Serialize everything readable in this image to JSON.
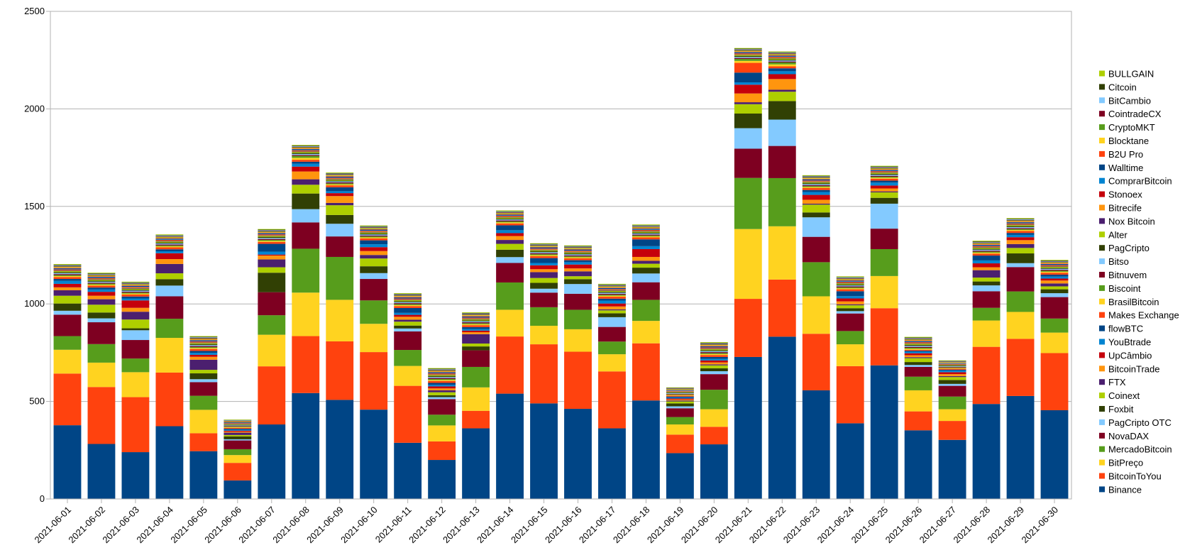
{
  "chart_data": {
    "type": "bar",
    "stacked": true,
    "title": "",
    "xlabel": "",
    "ylabel": "",
    "ylim": [
      0,
      2500
    ],
    "yticks": [
      0,
      500,
      1000,
      1500,
      2000,
      2500
    ],
    "grid": true,
    "legend": "right",
    "categories": [
      "2021-06-01",
      "2021-06-02",
      "2021-06-03",
      "2021-06-04",
      "2021-06-05",
      "2021-06-06",
      "2021-06-07",
      "2021-06-08",
      "2021-06-09",
      "2021-06-10",
      "2021-06-11",
      "2021-06-12",
      "2021-06-13",
      "2021-06-14",
      "2021-06-15",
      "2021-06-16",
      "2021-06-17",
      "2021-06-18",
      "2021-06-19",
      "2021-06-20",
      "2021-06-21",
      "2021-06-22",
      "2021-06-23",
      "2021-06-24",
      "2021-06-25",
      "2021-06-26",
      "2021-06-27",
      "2021-06-28",
      "2021-06-29",
      "2021-06-30"
    ],
    "series": [
      {
        "name": "Binance",
        "color": "#004586",
        "values": [
          378,
          282,
          240,
          373,
          245,
          95,
          382,
          543,
          508,
          458,
          288,
          200,
          362,
          540,
          490,
          462,
          362,
          505,
          235,
          280,
          728,
          832,
          557,
          388,
          685,
          352,
          303,
          487,
          528,
          455
        ]
      },
      {
        "name": "BitcoinToYou",
        "color": "#ff420e",
        "values": [
          265,
          292,
          282,
          275,
          92,
          90,
          298,
          292,
          300,
          295,
          292,
          95,
          90,
          293,
          303,
          293,
          292,
          293,
          95,
          90,
          298,
          293,
          290,
          293,
          293,
          97,
          97,
          293,
          293,
          293
        ]
      },
      {
        "name": "BitPreço",
        "color": "#ffd320",
        "values": [
          122,
          125,
          128,
          178,
          120,
          40,
          162,
          223,
          213,
          145,
          102,
          82,
          120,
          137,
          95,
          115,
          88,
          115,
          52,
          90,
          358,
          273,
          192,
          112,
          165,
          108,
          60,
          135,
          138,
          105
        ]
      },
      {
        "name": "MercadoBitcoin",
        "color": "#579d1c",
        "values": [
          70,
          95,
          70,
          98,
          72,
          30,
          100,
          225,
          220,
          120,
          82,
          55,
          105,
          140,
          95,
          100,
          65,
          108,
          38,
          100,
          262,
          247,
          175,
          68,
          138,
          70,
          65,
          65,
          105,
          72
        ]
      },
      {
        "name": "NovaDAX",
        "color": "#7e0021",
        "values": [
          110,
          112,
          95,
          115,
          70,
          45,
          118,
          135,
          105,
          110,
          95,
          80,
          85,
          100,
          75,
          82,
          75,
          90,
          45,
          80,
          150,
          165,
          130,
          90,
          105,
          50,
          55,
          85,
          125,
          110
        ]
      },
      {
        "name": "PagCripto OTC",
        "color": "#83caff",
        "values": [
          20,
          20,
          50,
          55,
          15,
          6,
          0,
          68,
          65,
          30,
          15,
          10,
          0,
          30,
          20,
          50,
          50,
          45,
          10,
          15,
          105,
          135,
          100,
          12,
          128,
          10,
          10,
          30,
          20,
          20
        ]
      },
      {
        "name": "Foxbit",
        "color": "#314004",
        "values": [
          37,
          30,
          10,
          33,
          30,
          15,
          100,
          80,
          45,
          35,
          15,
          10,
          20,
          38,
          30,
          25,
          20,
          30,
          15,
          15,
          75,
          95,
          25,
          15,
          30,
          15,
          20,
          20,
          50,
          20
        ]
      },
      {
        "name": "Coinext",
        "color": "#aecf00",
        "values": [
          40,
          40,
          45,
          30,
          18,
          7,
          28,
          45,
          50,
          40,
          20,
          15,
          15,
          30,
          25,
          15,
          15,
          20,
          10,
          15,
          48,
          48,
          40,
          15,
          28,
          20,
          15,
          20,
          28,
          15
        ]
      },
      {
        "name": "FTX",
        "color": "#4b1f6f",
        "values": [
          28,
          28,
          40,
          48,
          52,
          12,
          40,
          28,
          12,
          18,
          10,
          10,
          48,
          20,
          30,
          25,
          5,
          15,
          5,
          5,
          10,
          10,
          5,
          5,
          5,
          5,
          5,
          38,
          20,
          15
        ]
      },
      {
        "name": "BitcoinTrade",
        "color": "#ff950e",
        "values": [
          15,
          18,
          20,
          25,
          15,
          5,
          20,
          40,
          35,
          20,
          15,
          10,
          10,
          20,
          15,
          15,
          15,
          20,
          5,
          10,
          45,
          55,
          20,
          15,
          15,
          10,
          10,
          15,
          20,
          15
        ]
      },
      {
        "name": "UpCâmbio",
        "color": "#c5000b",
        "values": [
          18,
          20,
          38,
          30,
          10,
          5,
          5,
          25,
          15,
          20,
          10,
          10,
          8,
          15,
          20,
          20,
          15,
          40,
          5,
          10,
          45,
          25,
          25,
          15,
          15,
          10,
          10,
          20,
          15,
          10
        ]
      },
      {
        "name": "YouBtrade",
        "color": "#0084d1",
        "values": [
          15,
          12,
          10,
          10,
          10,
          5,
          15,
          15,
          10,
          15,
          10,
          8,
          8,
          15,
          12,
          12,
          15,
          15,
          5,
          8,
          12,
          15,
          15,
          12,
          15,
          8,
          8,
          15,
          12,
          10
        ]
      },
      {
        "name": "flowBTC",
        "color": "#004586",
        "values": [
          10,
          10,
          10,
          10,
          10,
          5,
          40,
          10,
          20,
          20,
          25,
          10,
          10,
          25,
          25,
          10,
          10,
          35,
          5,
          10,
          50,
          15,
          10,
          25,
          10,
          5,
          5,
          25,
          10,
          10
        ]
      },
      {
        "name": "Makes Exchange",
        "color": "#ff420e",
        "values": [
          10,
          10,
          10,
          10,
          10,
          5,
          10,
          10,
          10,
          10,
          10,
          10,
          10,
          10,
          10,
          10,
          10,
          10,
          5,
          10,
          50,
          10,
          10,
          10,
          10,
          5,
          5,
          10,
          10,
          10
        ]
      },
      {
        "name": "BrasilBitcoin",
        "color": "#ffd320",
        "values": [
          5,
          5,
          5,
          5,
          5,
          3,
          5,
          10,
          5,
          5,
          5,
          5,
          5,
          5,
          5,
          5,
          5,
          5,
          3,
          5,
          10,
          10,
          5,
          5,
          5,
          5,
          3,
          5,
          5,
          5
        ]
      },
      {
        "name": "Biscoint",
        "color": "#579d1c",
        "values": [
          5,
          5,
          5,
          5,
          5,
          3,
          5,
          10,
          5,
          5,
          5,
          5,
          5,
          5,
          5,
          5,
          5,
          5,
          3,
          5,
          10,
          10,
          5,
          5,
          5,
          5,
          3,
          5,
          5,
          5
        ]
      },
      {
        "name": "Bitnuvem",
        "color": "#7e0021",
        "values": [
          5,
          5,
          5,
          5,
          5,
          3,
          5,
          5,
          5,
          5,
          5,
          5,
          5,
          5,
          5,
          5,
          5,
          5,
          3,
          5,
          5,
          5,
          5,
          5,
          5,
          5,
          3,
          5,
          5,
          5
        ]
      },
      {
        "name": "Bitso",
        "color": "#83caff",
        "values": [
          5,
          5,
          5,
          5,
          5,
          3,
          5,
          5,
          5,
          5,
          5,
          5,
          5,
          5,
          5,
          5,
          5,
          5,
          3,
          5,
          5,
          5,
          5,
          5,
          5,
          5,
          3,
          5,
          5,
          5
        ]
      },
      {
        "name": "PagCripto",
        "color": "#314004",
        "values": [
          5,
          5,
          5,
          5,
          5,
          3,
          5,
          5,
          5,
          5,
          5,
          5,
          5,
          5,
          5,
          5,
          5,
          5,
          3,
          5,
          5,
          5,
          5,
          5,
          5,
          5,
          3,
          5,
          5,
          5
        ]
      },
      {
        "name": "Alter",
        "color": "#aecf00",
        "values": [
          5,
          5,
          5,
          5,
          5,
          3,
          5,
          5,
          5,
          5,
          5,
          5,
          5,
          5,
          5,
          5,
          5,
          5,
          3,
          5,
          5,
          5,
          5,
          5,
          5,
          5,
          3,
          5,
          5,
          5
        ]
      },
      {
        "name": "Nox Bitcoin",
        "color": "#4b1f6f",
        "values": [
          3,
          3,
          3,
          3,
          3,
          2,
          3,
          3,
          3,
          3,
          3,
          3,
          3,
          3,
          3,
          3,
          3,
          3,
          2,
          3,
          3,
          3,
          3,
          3,
          3,
          3,
          2,
          3,
          3,
          3
        ]
      },
      {
        "name": "Bitrecife",
        "color": "#ff950e",
        "values": [
          3,
          3,
          3,
          3,
          3,
          2,
          3,
          3,
          3,
          3,
          3,
          3,
          3,
          3,
          3,
          3,
          3,
          3,
          2,
          3,
          3,
          3,
          3,
          3,
          3,
          3,
          2,
          3,
          3,
          3
        ]
      },
      {
        "name": "Stonoex",
        "color": "#c5000b",
        "values": [
          3,
          3,
          3,
          3,
          3,
          2,
          3,
          3,
          3,
          3,
          3,
          3,
          3,
          3,
          3,
          3,
          3,
          3,
          2,
          3,
          3,
          3,
          3,
          3,
          3,
          3,
          2,
          3,
          3,
          3
        ]
      },
      {
        "name": "ComprarBitcoin",
        "color": "#0084d1",
        "values": [
          3,
          3,
          3,
          3,
          3,
          2,
          3,
          3,
          3,
          3,
          3,
          3,
          3,
          3,
          3,
          3,
          3,
          3,
          2,
          3,
          3,
          3,
          3,
          3,
          3,
          3,
          2,
          3,
          3,
          3
        ]
      },
      {
        "name": "Walltime",
        "color": "#004586",
        "values": [
          3,
          3,
          3,
          3,
          3,
          2,
          3,
          3,
          3,
          3,
          3,
          3,
          3,
          3,
          3,
          3,
          3,
          3,
          2,
          3,
          3,
          3,
          3,
          3,
          3,
          3,
          2,
          3,
          3,
          3
        ]
      },
      {
        "name": "B2U Pro",
        "color": "#ff420e",
        "values": [
          3,
          3,
          3,
          3,
          3,
          2,
          3,
          3,
          3,
          3,
          3,
          3,
          3,
          3,
          3,
          3,
          3,
          3,
          2,
          3,
          3,
          3,
          3,
          3,
          3,
          3,
          2,
          3,
          3,
          3
        ]
      },
      {
        "name": "Blocktane",
        "color": "#ffd320",
        "values": [
          3,
          3,
          3,
          3,
          3,
          2,
          3,
          3,
          3,
          3,
          3,
          3,
          3,
          3,
          3,
          3,
          3,
          3,
          2,
          3,
          3,
          3,
          3,
          3,
          3,
          3,
          2,
          3,
          3,
          3
        ]
      },
      {
        "name": "CryptoMKT",
        "color": "#579d1c",
        "values": [
          3,
          3,
          3,
          3,
          3,
          2,
          3,
          3,
          3,
          3,
          3,
          3,
          3,
          3,
          3,
          3,
          3,
          3,
          2,
          3,
          3,
          3,
          3,
          3,
          3,
          3,
          2,
          3,
          3,
          3
        ]
      },
      {
        "name": "CointradeCX",
        "color": "#7e0021",
        "values": [
          3,
          3,
          3,
          3,
          3,
          2,
          3,
          3,
          3,
          3,
          3,
          3,
          3,
          3,
          3,
          3,
          3,
          3,
          2,
          3,
          3,
          3,
          3,
          3,
          3,
          3,
          2,
          3,
          3,
          3
        ]
      },
      {
        "name": "BitCambio",
        "color": "#83caff",
        "values": [
          3,
          3,
          3,
          3,
          3,
          2,
          3,
          3,
          3,
          3,
          3,
          3,
          3,
          3,
          3,
          3,
          3,
          3,
          2,
          3,
          3,
          3,
          3,
          3,
          3,
          3,
          2,
          3,
          3,
          3
        ]
      },
      {
        "name": "Citcoin",
        "color": "#314004",
        "values": [
          3,
          3,
          3,
          3,
          3,
          2,
          3,
          3,
          3,
          3,
          3,
          3,
          3,
          3,
          3,
          3,
          3,
          3,
          2,
          3,
          3,
          3,
          3,
          3,
          3,
          3,
          2,
          3,
          3,
          3
        ]
      },
      {
        "name": "BULLGAIN",
        "color": "#aecf00",
        "values": [
          3,
          3,
          3,
          3,
          3,
          2,
          3,
          3,
          3,
          3,
          3,
          3,
          3,
          3,
          3,
          3,
          3,
          3,
          2,
          3,
          3,
          3,
          3,
          3,
          3,
          3,
          2,
          3,
          3,
          3
        ]
      }
    ]
  }
}
